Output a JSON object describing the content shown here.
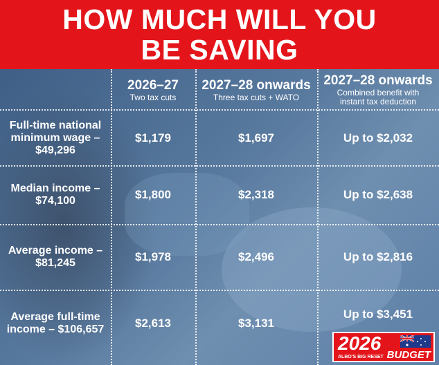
{
  "banner": {
    "title": "HOW MUCH WILL YOU BE SAVING"
  },
  "columns": [
    {
      "title": "2026–27",
      "subtitle": "Two tax cuts"
    },
    {
      "title": "2027–28 onwards",
      "subtitle": "Three tax cuts + WATO"
    },
    {
      "title": "2027–28 onwards",
      "subtitle": "Combined benefit with instant tax deduction"
    }
  ],
  "rows": [
    {
      "label": "Full-time national minimum wage – $49,296",
      "values": [
        "$1,179",
        "$1,697",
        "Up to $2,032"
      ]
    },
    {
      "label": "Median income – $74,100",
      "values": [
        "$1,800",
        "$2,318",
        "Up to $2,638"
      ]
    },
    {
      "label": "Average income – $81,245",
      "values": [
        "$1,978",
        "$2,496",
        "Up to $2,816"
      ]
    },
    {
      "label": "Average full-time income – $106,657",
      "values": [
        "$2,613",
        "$3,131",
        "Up to $3,451"
      ]
    }
  ],
  "logo": {
    "year": "2026",
    "tagline": "ALBO'S BIG RESET",
    "word": "BUDGET",
    "accent": "#e3151b"
  },
  "colors": {
    "banner": "#e3151b",
    "background": "#4d6c90",
    "text": "#ffffff"
  }
}
